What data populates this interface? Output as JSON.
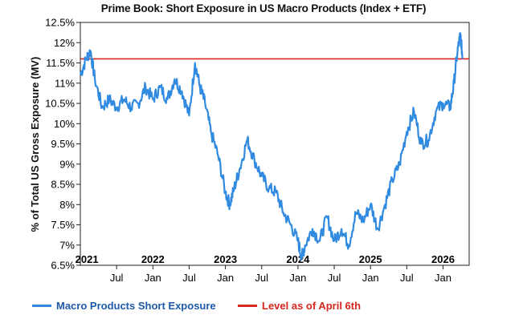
{
  "chart_data": {
    "type": "line",
    "title": "Prime Book: Short Exposure in US Macro Products (Index + ETF)",
    "xlabel": "",
    "ylabel": "% of Total US Gross Exposure (MV)",
    "ylim": [
      6.5,
      12.5
    ],
    "yticks": [
      "12.5%",
      "12%",
      "11.5%",
      "11%",
      "10.5%",
      "10%",
      "9.5%",
      "9%",
      "8.5%",
      "8%",
      "7.5%",
      "7%",
      "6.5%"
    ],
    "year_labels": [
      "2021",
      "2022",
      "2023",
      "2024",
      "2025",
      "2026"
    ],
    "month_labels": [
      "Jul",
      "Jan",
      "Jul",
      "Jan",
      "Jul",
      "Jan",
      "Jul",
      "Jan",
      "Jul",
      "Jan"
    ],
    "series": [
      {
        "name": "Macro Products Short Exposure",
        "color": "#2f8ae0",
        "x": [
          2021.0,
          2021.08,
          2021.14,
          2021.2,
          2021.3,
          2021.4,
          2021.5,
          2021.6,
          2021.7,
          2021.8,
          2021.9,
          2022.0,
          2022.1,
          2022.2,
          2022.3,
          2022.4,
          2022.5,
          2022.58,
          2022.65,
          2022.72,
          2022.8,
          2022.9,
          2023.0,
          2023.06,
          2023.12,
          2023.2,
          2023.3,
          2023.4,
          2023.5,
          2023.6,
          2023.7,
          2023.8,
          2023.9,
          2024.0,
          2024.05,
          2024.1,
          2024.2,
          2024.3,
          2024.4,
          2024.5,
          2024.6,
          2024.7,
          2024.8,
          2024.9,
          2025.0,
          2025.1,
          2025.2,
          2025.3,
          2025.4,
          2025.5,
          2025.6,
          2025.7,
          2025.8,
          2025.9,
          2026.0,
          2026.1,
          2026.15,
          2026.2,
          2026.24,
          2026.27
        ],
        "values": [
          11.2,
          11.6,
          11.8,
          11.1,
          10.4,
          10.6,
          10.4,
          10.6,
          10.4,
          10.5,
          10.9,
          10.6,
          10.9,
          10.6,
          11.1,
          10.8,
          10.2,
          11.5,
          10.9,
          10.5,
          9.8,
          9.2,
          8.3,
          8.0,
          8.4,
          8.9,
          9.6,
          9.1,
          8.7,
          8.4,
          8.3,
          7.8,
          7.5,
          7.1,
          6.7,
          7.0,
          7.4,
          7.1,
          7.7,
          7.1,
          7.4,
          7.0,
          7.8,
          7.6,
          8.0,
          7.4,
          8.0,
          8.6,
          9.0,
          9.8,
          10.3,
          9.5,
          9.6,
          10.3,
          10.5,
          10.4,
          11.0,
          11.8,
          12.2,
          11.6
        ]
      },
      {
        "name": "Level as of April 6th",
        "color": "#d7261e",
        "level": 11.6
      }
    ],
    "legend": [
      "Macro Products Short Exposure",
      "Level as of April 6th"
    ]
  }
}
